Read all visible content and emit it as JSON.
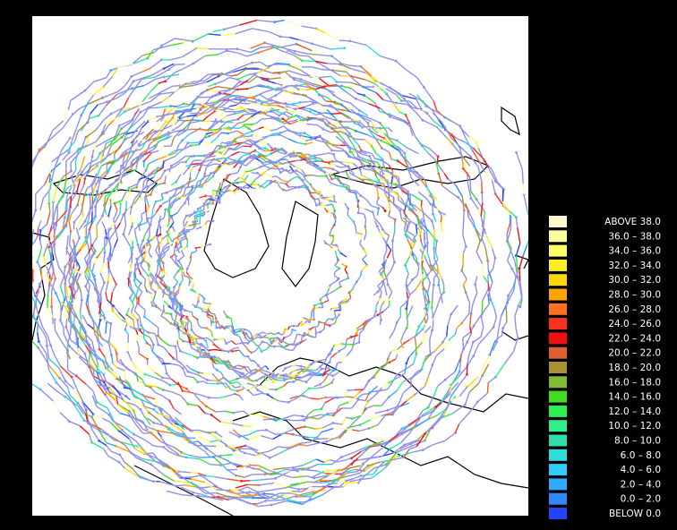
{
  "legend": {
    "entries": [
      {
        "label": "ABOVE   38.0",
        "color": "#fff8c8"
      },
      {
        "label": "36.0 – 38.0",
        "color": "#ffff99"
      },
      {
        "label": "34.0 – 36.0",
        "color": "#ffff66"
      },
      {
        "label": "32.0 – 34.0",
        "color": "#ffee22"
      },
      {
        "label": "30.0 – 32.0",
        "color": "#ffd700"
      },
      {
        "label": "28.0 – 30.0",
        "color": "#ffa500"
      },
      {
        "label": "26.0 – 28.0",
        "color": "#ff7020"
      },
      {
        "label": "24.0 – 26.0",
        "color": "#ff3020"
      },
      {
        "label": "22.0 – 24.0",
        "color": "#ee1010"
      },
      {
        "label": "20.0 – 22.0",
        "color": "#dd6030"
      },
      {
        "label": "18.0 – 20.0",
        "color": "#aa9030"
      },
      {
        "label": "16.0 – 18.0",
        "color": "#80bb30"
      },
      {
        "label": "14.0 – 16.0",
        "color": "#40dd20"
      },
      {
        "label": "12.0 – 14.0",
        "color": "#30ee50"
      },
      {
        "label": "10.0 – 12.0",
        "color": "#30ee88"
      },
      {
        "label": "8.0 –  10.0",
        "color": "#30ddaa"
      },
      {
        "label": "6.0 –   8.0",
        "color": "#30dddd"
      },
      {
        "label": "4.0 –   6.0",
        "color": "#30ccff"
      },
      {
        "label": "2.0 –   4.0",
        "color": "#30aaff"
      },
      {
        "label": "0.0 –   2.0",
        "color": "#3088ff"
      },
      {
        "label": "BELOW     0.0",
        "color": "#2244ff"
      }
    ]
  }
}
